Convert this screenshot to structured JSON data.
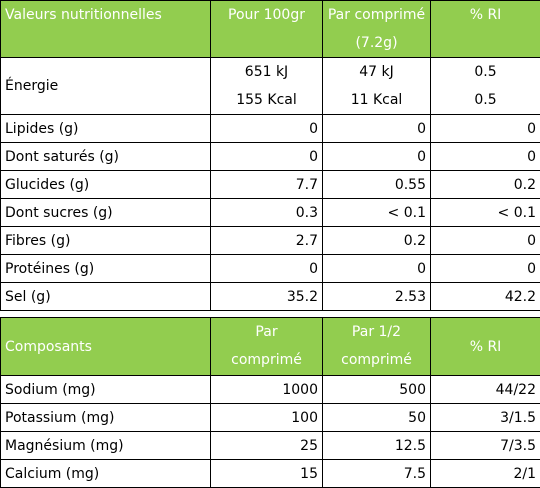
{
  "nutrition": {
    "headers": [
      "Valeurs nutritionnelles",
      "Pour 100gr",
      "Par comprimé",
      "(7.2g)",
      "% RI"
    ],
    "energy": {
      "label": "Énergie",
      "per100": [
        "651 kJ",
        "155 Kcal"
      ],
      "perTab": [
        "47 kJ",
        "11 Kcal"
      ],
      "ri": [
        "0.5",
        "0.5"
      ]
    },
    "rows": [
      {
        "label": "Lipides (g)",
        "per100": "0",
        "perTab": "0",
        "ri": "0"
      },
      {
        "label": "Dont saturés (g)",
        "per100": "0",
        "perTab": "0",
        "ri": "0"
      },
      {
        "label": "Glucides (g)",
        "per100": "7.7",
        "perTab": "0.55",
        "ri": "0.2"
      },
      {
        "label": "Dont sucres (g)",
        "per100": "0.3",
        "perTab": "< 0.1",
        "ri": "< 0.1"
      },
      {
        "label": "Fibres (g)",
        "per100": "2.7",
        "perTab": "0.2",
        "ri": "0"
      },
      {
        "label": "Protéines (g)",
        "per100": "0",
        "perTab": "0",
        "ri": "0"
      },
      {
        "label": "Sel (g)",
        "per100": "35.2",
        "perTab": "2.53",
        "ri": "42.2"
      }
    ]
  },
  "components": {
    "headers": [
      "Composants",
      "Par",
      "comprimé",
      "Par 1/2",
      "comprimé",
      "% RI"
    ],
    "rows": [
      {
        "label": "Sodium (mg)",
        "perTab": "1000",
        "perHalf": "500",
        "ri": "44/22"
      },
      {
        "label": "Potassium (mg)",
        "perTab": "100",
        "perHalf": "50",
        "ri": "3/1.5"
      },
      {
        "label": "Magnésium (mg)",
        "perTab": "25",
        "perHalf": "12.5",
        "ri": "7/3.5"
      },
      {
        "label": "Calcium (mg)",
        "perTab": "15",
        "perHalf": "7.5",
        "ri": "2/1"
      }
    ]
  },
  "colors": {
    "header_bg": "#92cd4f",
    "header_text": "#ffffff"
  }
}
